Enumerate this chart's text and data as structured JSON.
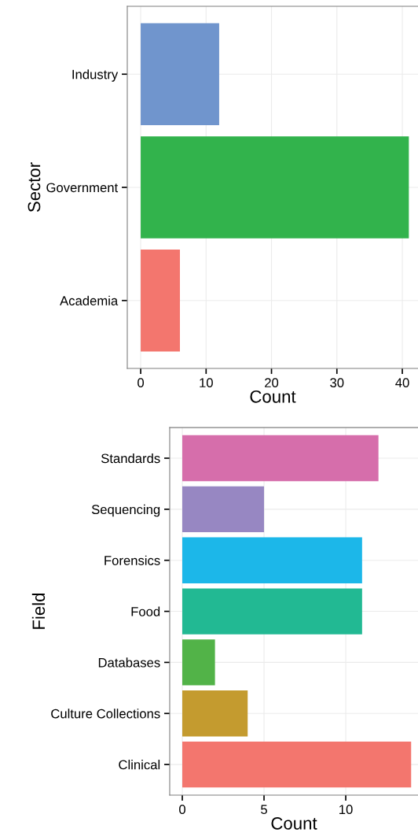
{
  "chart_data": [
    {
      "type": "bar",
      "orientation": "horizontal",
      "ylabel": "Sector",
      "xlabel": "Count",
      "categories": [
        "Industry",
        "Government",
        "Academia"
      ],
      "values": [
        12,
        41,
        6
      ],
      "colors": [
        "#7095cd",
        "#32b34c",
        "#f3766e"
      ],
      "xlim": [
        -2.05,
        42.4
      ],
      "xticks": [
        0,
        10,
        20,
        30,
        40
      ],
      "grid": true,
      "legend": false
    },
    {
      "type": "bar",
      "orientation": "horizontal",
      "ylabel": "Field",
      "xlabel": "Count",
      "categories": [
        "Standards",
        "Sequencing",
        "Forensics",
        "Food",
        "Databases",
        "Culture Collections",
        "Clinical"
      ],
      "values": [
        12,
        5,
        11,
        11,
        2,
        4,
        14
      ],
      "colors": [
        "#d66eab",
        "#9787c2",
        "#1cb7e9",
        "#22b993",
        "#52b348",
        "#c49b2f",
        "#f3766e"
      ],
      "xlim": [
        -0.77,
        14.42
      ],
      "xticks": [
        0,
        5,
        10
      ],
      "grid": true,
      "legend": false
    }
  ]
}
